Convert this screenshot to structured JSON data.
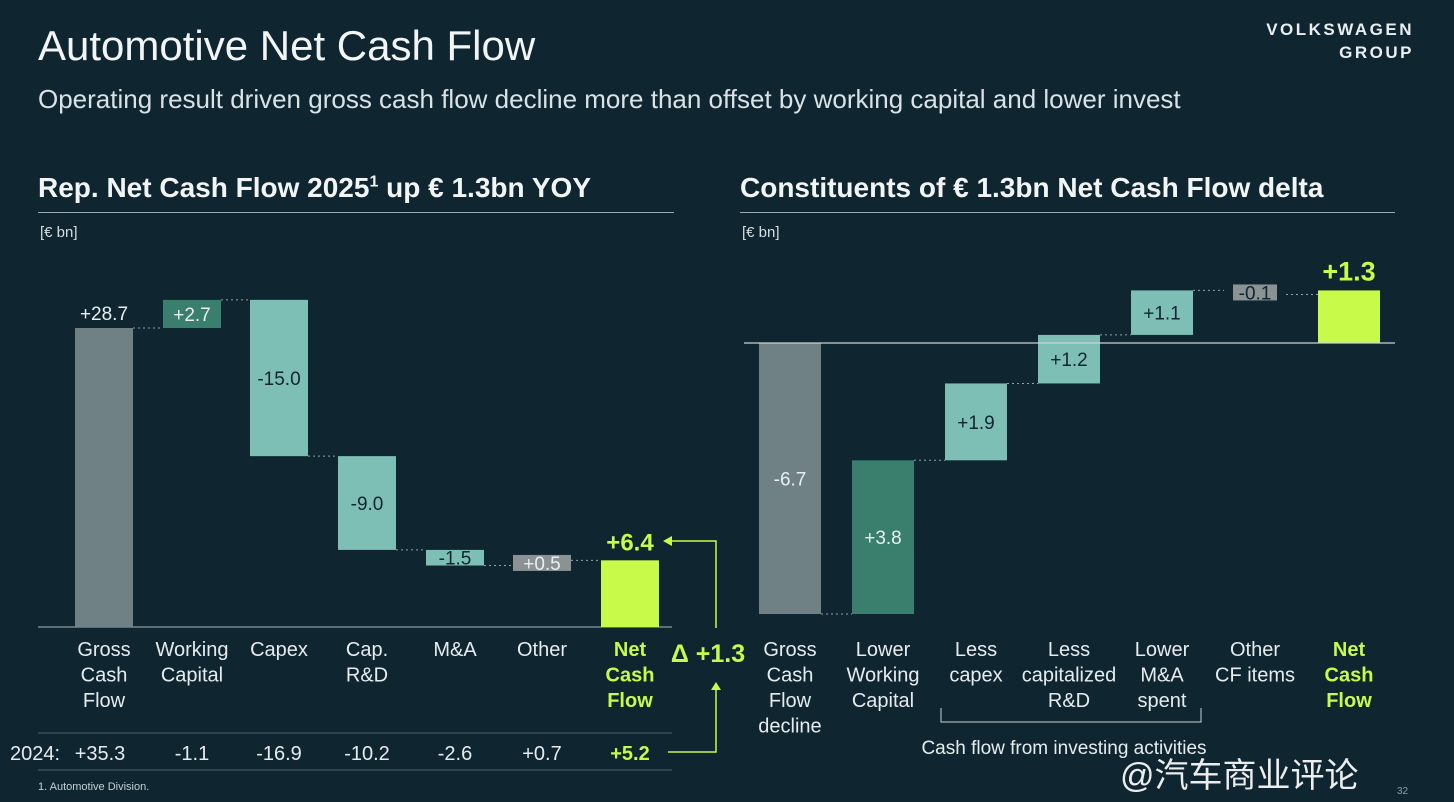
{
  "header": {
    "title": "Automotive Net Cash Flow",
    "subtitle": "Operating result driven gross cash flow decline more than offset by working capital and lower invest",
    "brand_line1": "VOLKSWAGEN",
    "brand_line2": "GROUP"
  },
  "left_section": {
    "title": "Rep. Net Cash Flow 2025",
    "title_sup": "1",
    "title_suffix": " up € 1.3bn YOY",
    "unit": "[€ bn]"
  },
  "right_section": {
    "title": "Constituents of € 1.3bn Net Cash Flow delta",
    "unit": "[€ bn]"
  },
  "footer": {
    "footnote": "1. Automotive Division.",
    "page": "32",
    "watermark": "@汽车商业评论"
  },
  "colors": {
    "background": "#0f2630",
    "gray_bar": "#6f8185",
    "dark_green": "#3a7e6e",
    "light_teal": "#7ebfb5",
    "other_gray": "#8a9294",
    "highlight": "#c8fa4a"
  },
  "chart_data": [
    {
      "type": "waterfall",
      "title": "Rep. Net Cash Flow 2025 up € 1.3bn YOY",
      "unit": "€ bn",
      "categories": [
        [
          "Gross",
          "Cash",
          "Flow"
        ],
        [
          "Working",
          "Capital"
        ],
        [
          "Capex"
        ],
        [
          "Cap.",
          "R&D"
        ],
        [
          "M&A"
        ],
        [
          "Other"
        ],
        [
          "Net",
          "Cash",
          "Flow"
        ]
      ],
      "values": [
        28.7,
        2.7,
        -15.0,
        -9.0,
        -1.5,
        0.5,
        6.4
      ],
      "labels": [
        "+28.7",
        "+2.7",
        "-15.0",
        "-9.0",
        "-1.5",
        "+0.5",
        "+6.4"
      ],
      "kinds": [
        "base",
        "dark",
        "light",
        "light",
        "light",
        "gray",
        "total"
      ],
      "prior_year_label": "2024:",
      "prior_year_values": [
        "+35.3",
        "-1.1",
        "-16.9",
        "-10.2",
        "-2.6",
        "+0.7",
        "+5.2"
      ],
      "delta_label": "Δ +1.3",
      "ylim": [
        0,
        34
      ]
    },
    {
      "type": "waterfall",
      "title": "Constituents of € 1.3bn Net Cash Flow delta",
      "unit": "€ bn",
      "categories": [
        [
          "Gross",
          "Cash",
          "Flow",
          "decline"
        ],
        [
          "Lower",
          "Working",
          "Capital"
        ],
        [
          "Less",
          "capex"
        ],
        [
          "Less",
          "capitalized",
          "R&D"
        ],
        [
          "Lower",
          "M&A",
          "spent"
        ],
        [
          "Other",
          "CF items"
        ],
        [
          "Net",
          "Cash",
          "Flow"
        ]
      ],
      "values": [
        -6.7,
        3.8,
        1.9,
        1.2,
        1.1,
        -0.1,
        1.3
      ],
      "labels": [
        "-6.7",
        "+3.8",
        "+1.9",
        "+1.2",
        "+1.1",
        "-0.1",
        "+1.3"
      ],
      "kinds": [
        "base",
        "dark",
        "light",
        "light",
        "light",
        "gray",
        "total"
      ],
      "bracket_label": "Cash flow from investing activities",
      "ylim": [
        -6.7,
        2.2
      ]
    }
  ]
}
